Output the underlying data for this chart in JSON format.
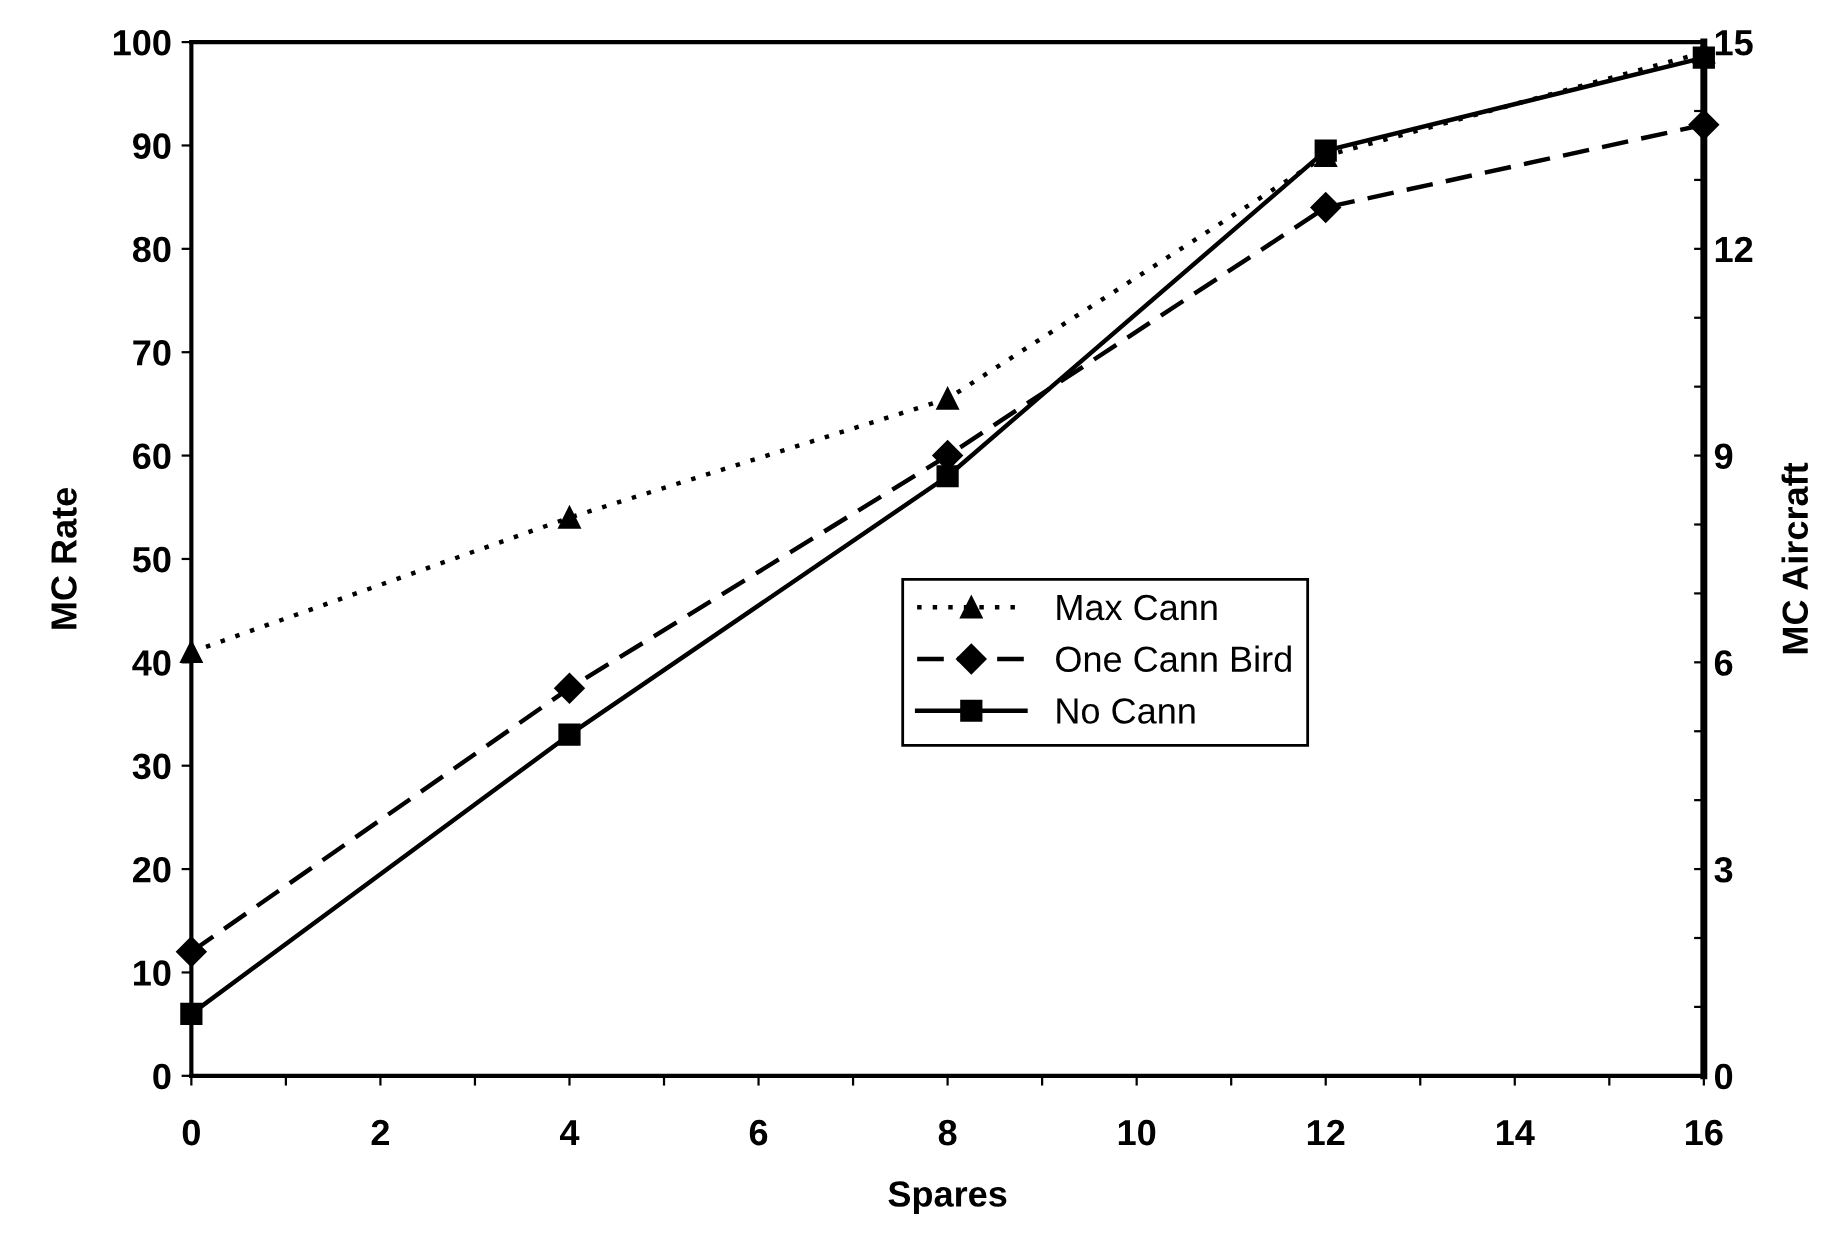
{
  "chart_data": {
    "type": "line",
    "xlabel": "Spares",
    "ylabel": "MC Rate",
    "y2label": "MC Aircraft",
    "x": [
      0,
      4,
      8,
      12,
      16
    ],
    "series": [
      {
        "name": "Max Cann",
        "color": "#000000",
        "marker": "triangle",
        "line_style": "dotted",
        "values": [
          41,
          54,
          65.5,
          89,
          99
        ]
      },
      {
        "name": "One Cann Bird",
        "color": "#000000",
        "marker": "diamond",
        "line_style": "dashed",
        "values": [
          12,
          37.5,
          60,
          84,
          92
        ]
      },
      {
        "name": "No Cann",
        "color": "#000000",
        "marker": "square",
        "line_style": "solid",
        "values": [
          6,
          33,
          58,
          89.5,
          98.5
        ]
      }
    ],
    "xlim": [
      0,
      16
    ],
    "xticks": [
      0,
      {
        "value": 1,
        "label": null
      },
      2,
      {
        "value": 3,
        "label": null
      },
      4,
      {
        "value": 5,
        "label": null
      },
      6,
      {
        "value": 7,
        "label": null
      },
      8,
      {
        "value": 9,
        "label": null
      },
      10,
      {
        "value": 11,
        "label": null
      },
      12,
      {
        "value": 13,
        "label": null
      },
      14,
      {
        "value": 15,
        "label": null
      },
      16
    ],
    "ylim": [
      0,
      100
    ],
    "yticks": [
      0,
      10,
      20,
      30,
      40,
      50,
      60,
      70,
      80,
      90,
      100
    ],
    "y2lim": [
      0,
      15
    ],
    "y2ticks": [
      0,
      {
        "value": 1,
        "label": null
      },
      {
        "value": 2,
        "label": null
      },
      3,
      {
        "value": 4,
        "label": null
      },
      {
        "value": 5,
        "label": null
      },
      6,
      {
        "value": 7,
        "label": null
      },
      {
        "value": 8,
        "label": null
      },
      9,
      {
        "value": 10,
        "label": null
      },
      {
        "value": 11,
        "label": null
      },
      12,
      {
        "value": 13,
        "label": null
      },
      {
        "value": 14,
        "label": null
      },
      15
    ],
    "grid": false,
    "legend": "right"
  }
}
